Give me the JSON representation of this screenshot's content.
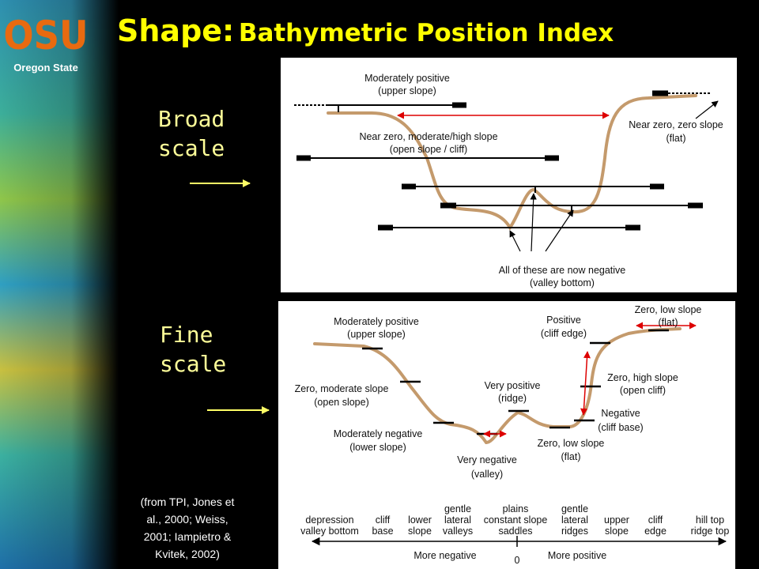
{
  "logo": {
    "mark": "OSU",
    "name": "Oregon State"
  },
  "title": {
    "main": "Shape:",
    "sub": "Bathymetric Position Index"
  },
  "broad_label": [
    "Broad",
    "scale"
  ],
  "fine_label": [
    "Fine",
    "scale"
  ],
  "citation": [
    "(from TPI, Jones et",
    "al., 2000; Weiss,",
    "2001; Iampietro &",
    "Kvitek, 2002)"
  ],
  "top_panel": {
    "labels": [
      [
        "Moderately positive",
        "(upper slope)"
      ],
      [
        "Near zero, moderate/high slope",
        "(open slope / cliff)"
      ],
      [
        "Near zero, zero slope",
        "(flat)"
      ],
      [
        "All of these are now negative",
        "(valley bottom)"
      ]
    ]
  },
  "bottom_panel": {
    "labels": [
      [
        "Moderately positive",
        "(upper slope)"
      ],
      [
        "Zero, moderate slope",
        "(open slope)"
      ],
      [
        "Moderately negative",
        "(lower slope)"
      ],
      [
        "Very negative",
        "(valley)"
      ],
      [
        "Very positive",
        "(ridge)"
      ],
      [
        "Positive",
        "(cliff edge)"
      ],
      [
        "Zero, low slope",
        "(flat)"
      ],
      [
        "Zero, high slope",
        "(open cliff)"
      ],
      [
        "Negative",
        "(cliff base)"
      ],
      [
        "Zero, low slope",
        "(flat)"
      ]
    ],
    "scale": [
      [
        "depression",
        "valley bottom"
      ],
      [
        "cliff",
        "base"
      ],
      [
        "lower",
        "slope"
      ],
      [
        "gentle",
        "lateral",
        "valleys"
      ],
      [
        "plains",
        "constant slope",
        "saddles"
      ],
      [
        "gentle",
        "lateral",
        "ridges"
      ],
      [
        "upper",
        "slope"
      ],
      [
        "cliff",
        "edge"
      ],
      [
        "hill top",
        "ridge top"
      ]
    ],
    "more_negative": "More negative",
    "zero": "0",
    "more_positive": "More positive"
  }
}
